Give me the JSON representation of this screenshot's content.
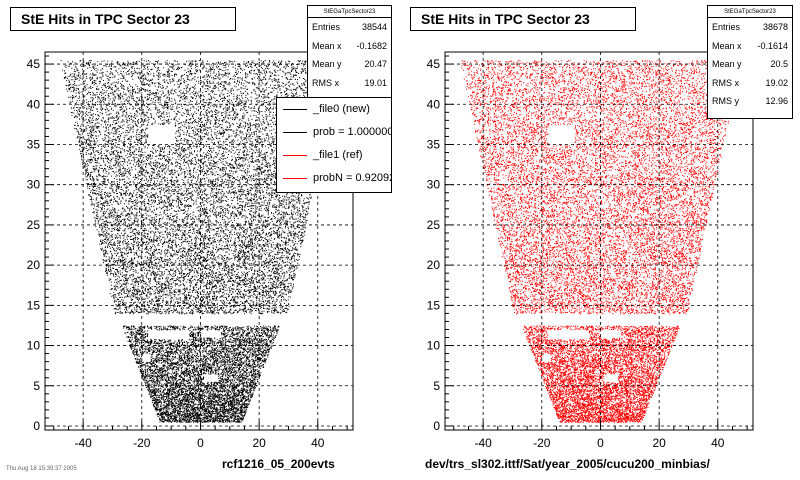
{
  "panels": [
    {
      "title": "StE Hits in TPC Sector 23",
      "stats": {
        "name": "StEGaTpcSector23",
        "rows": [
          {
            "label": "Entries",
            "value": "38544"
          },
          {
            "label": "Mean x",
            "value": "-0.1682"
          },
          {
            "label": "Mean y",
            "value": "20.47"
          },
          {
            "label": "RMS x",
            "value": "19.01"
          }
        ]
      },
      "footer": "rcf1216_05_200evts"
    },
    {
      "title": "StE Hits in TPC Sector 23",
      "stats": {
        "name": "StEGaTpcSector23",
        "rows": [
          {
            "label": "Entries",
            "value": "38678"
          },
          {
            "label": "Mean x",
            "value": "-0.1614"
          },
          {
            "label": "Mean y",
            "value": "20.5"
          },
          {
            "label": "RMS x",
            "value": "19.02"
          },
          {
            "label": "RMS y",
            "value": "12.96"
          }
        ]
      },
      "footer": "dev/trs_sl302.ittf/Sat/year_2005/cucu200_minbias/"
    }
  ],
  "legend": {
    "entries": [
      {
        "label": "_file0 (new)",
        "color": "#000000"
      },
      {
        "label": "prob = 1.000000",
        "color": "#000000"
      },
      {
        "label": "_file1 (ref)",
        "color": "#ff0000"
      },
      {
        "label": "probN = 0.920920",
        "color": "#ff0000"
      }
    ]
  },
  "corner_text": "Thu Aug 18 15:39:37 2005",
  "chart_data": [
    {
      "type": "scatter",
      "title": "StE Hits in TPC Sector 23",
      "xlim": [
        -53,
        52
      ],
      "ylim": [
        -0.5,
        46.5
      ],
      "x_ticks": [
        -40,
        -20,
        0,
        20,
        40
      ],
      "y_ticks": [
        0,
        5,
        10,
        15,
        20,
        25,
        30,
        35,
        40,
        45
      ],
      "grid": true,
      "color": "#000000",
      "entries": 38544,
      "mean_x": -0.1682,
      "mean_y": 20.47,
      "rms_x": 19.01,
      "region": {
        "outer_top_halfwidth": 48,
        "outer_bottom_halfwidth": 29.5,
        "outer_y": [
          14,
          45.5
        ],
        "inner_top_halfwidth": 27,
        "inner_bottom_halfwidth": 14,
        "inner_y": [
          0.5,
          12.5
        ]
      }
    },
    {
      "type": "scatter",
      "title": "StE Hits in TPC Sector 23",
      "xlim": [
        -53,
        52
      ],
      "ylim": [
        -0.5,
        46.5
      ],
      "x_ticks": [
        -40,
        -20,
        0,
        20,
        40
      ],
      "y_ticks": [
        0,
        5,
        10,
        15,
        20,
        25,
        30,
        35,
        40,
        45
      ],
      "grid": true,
      "color": "#ff0000",
      "entries": 38678,
      "mean_x": -0.1614,
      "mean_y": 20.5,
      "rms_x": 19.02,
      "rms_y": 12.96,
      "region": {
        "outer_top_halfwidth": 48,
        "outer_bottom_halfwidth": 29.5,
        "outer_y": [
          14,
          45.5
        ],
        "inner_top_halfwidth": 27,
        "inner_bottom_halfwidth": 14,
        "inner_y": [
          0.5,
          12.5
        ]
      }
    }
  ]
}
